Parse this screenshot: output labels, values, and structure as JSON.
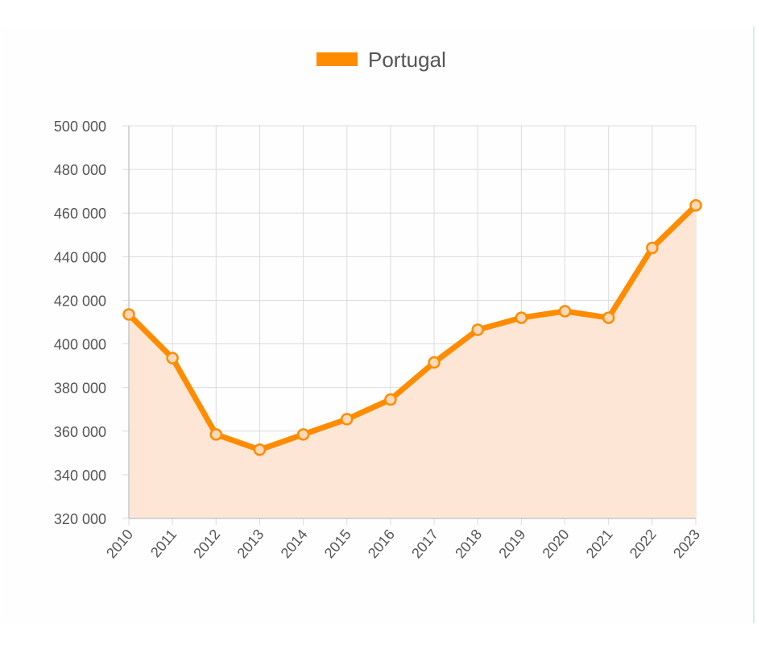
{
  "chart_data": {
    "type": "area",
    "title": "",
    "xlabel": "",
    "ylabel": "",
    "legend_position": "top-center",
    "grid": true,
    "categories": [
      "2010",
      "2011",
      "2012",
      "2013",
      "2014",
      "2015",
      "2016",
      "2017",
      "2018",
      "2019",
      "2020",
      "2021",
      "2022",
      "2023"
    ],
    "series": [
      {
        "name": "Portugal",
        "values": [
          413500,
          393500,
          358500,
          351500,
          358500,
          365500,
          374500,
          391500,
          406500,
          412000,
          415000,
          412000,
          444000,
          463500
        ],
        "color": "#FF8C00",
        "fill_color": "#FDE6D6"
      }
    ],
    "ylim": [
      320000,
      500000
    ],
    "y_ticks": [
      {
        "value": 500000,
        "label": "500 000"
      },
      {
        "value": 480000,
        "label": "480 000"
      },
      {
        "value": 460000,
        "label": "460 000"
      },
      {
        "value": 440000,
        "label": "440 000"
      },
      {
        "value": 420000,
        "label": "420 000"
      },
      {
        "value": 400000,
        "label": "400 000"
      },
      {
        "value": 380000,
        "label": "380 000"
      },
      {
        "value": 360000,
        "label": "360 000"
      },
      {
        "value": 340000,
        "label": "340 000"
      },
      {
        "value": 320000,
        "label": "320 000"
      }
    ],
    "grid_color": "#DCDCDC",
    "axis_color": "#C8C8C8"
  }
}
